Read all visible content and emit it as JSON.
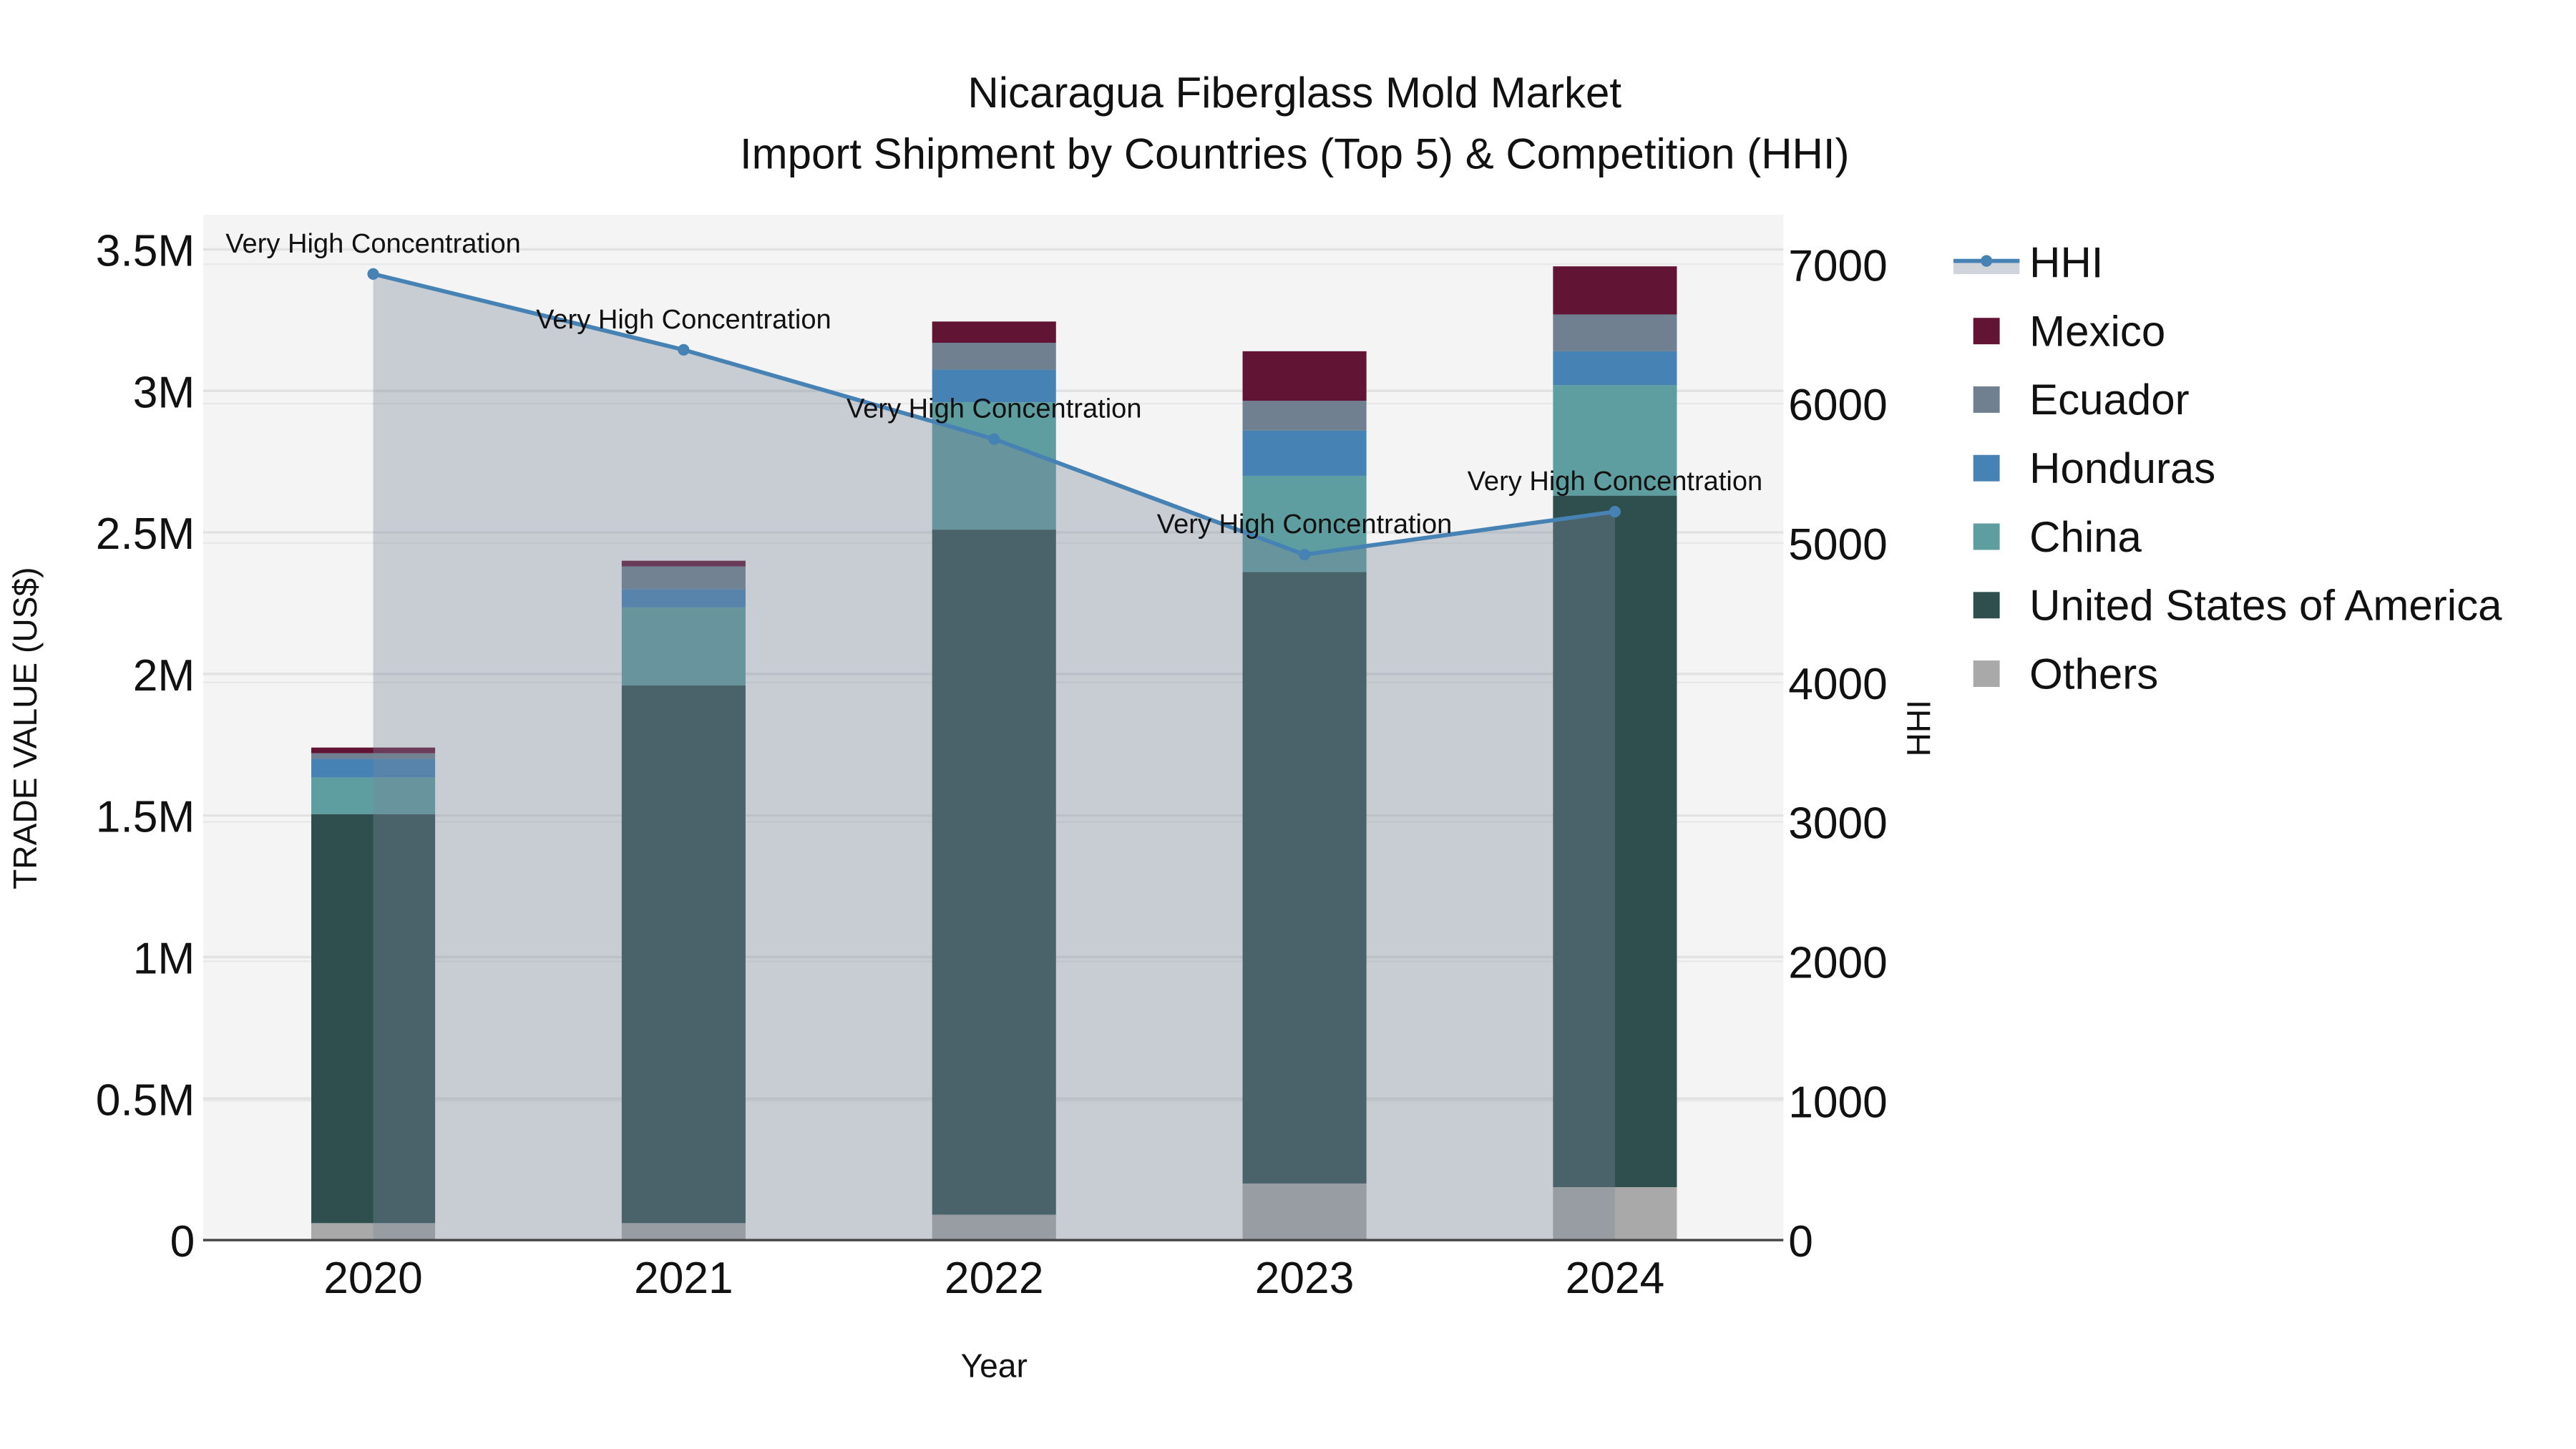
{
  "chart_data": {
    "type": "bar",
    "title_line1": "Nicaragua Fiberglass Mold Market",
    "title_line2": "Import Shipment by Countries (Top 5) & Competition (HHI)",
    "xlabel": "Year",
    "ylabel": "TRADE VALUE (US$)",
    "y2label": "HHI",
    "categories": [
      "2020",
      "2021",
      "2022",
      "2023",
      "2024"
    ],
    "ylim": [
      0,
      3500000
    ],
    "y2lim": [
      0,
      7000
    ],
    "yticks": [
      {
        "v": 0,
        "label": "0"
      },
      {
        "v": 500000,
        "label": "0.5M"
      },
      {
        "v": 1000000,
        "label": "1M"
      },
      {
        "v": 1500000,
        "label": "1.5M"
      },
      {
        "v": 2000000,
        "label": "2M"
      },
      {
        "v": 2500000,
        "label": "2.5M"
      },
      {
        "v": 3000000,
        "label": "3M"
      },
      {
        "v": 3500000,
        "label": "3.5M"
      }
    ],
    "y2ticks": [
      {
        "v": 0,
        "label": "0"
      },
      {
        "v": 1000,
        "label": "1000"
      },
      {
        "v": 2000,
        "label": "2000"
      },
      {
        "v": 3000,
        "label": "3000"
      },
      {
        "v": 4000,
        "label": "4000"
      },
      {
        "v": 5000,
        "label": "5000"
      },
      {
        "v": 6000,
        "label": "6000"
      },
      {
        "v": 7000,
        "label": "7000"
      }
    ],
    "stack_order": "bottom-to-top",
    "series": [
      {
        "name": "Others",
        "color": "#a9a9a9",
        "values": [
          60000,
          60000,
          90000,
          200000,
          187000
        ]
      },
      {
        "name": "United States of America",
        "color": "#2f4f4f",
        "values": [
          1445000,
          1900000,
          2420000,
          2160000,
          2443000
        ]
      },
      {
        "name": "China",
        "color": "#5f9ea0",
        "values": [
          129000,
          275000,
          450000,
          340000,
          390000
        ]
      },
      {
        "name": "Honduras",
        "color": "#4682b4",
        "values": [
          66000,
          65000,
          115000,
          160000,
          120000
        ]
      },
      {
        "name": "Ecuador",
        "color": "#708090",
        "values": [
          20000,
          80000,
          95000,
          105000,
          130000
        ]
      },
      {
        "name": "Mexico",
        "color": "#611434",
        "values": [
          20000,
          20000,
          75000,
          175000,
          170000
        ]
      }
    ],
    "hhi": {
      "name": "HHI",
      "color": "#4682b4",
      "values": [
        6930,
        6386,
        5746,
        4917,
        5225
      ],
      "annotations": [
        "Very High Concentration",
        "Very High Concentration",
        "Very High Concentration",
        "Very High Concentration",
        "Very High Concentration"
      ]
    },
    "legend": {
      "position": "right",
      "items": [
        "HHI",
        "Mexico",
        "Ecuador",
        "Honduras",
        "China",
        "United States of America",
        "Others"
      ]
    },
    "grid": true
  }
}
